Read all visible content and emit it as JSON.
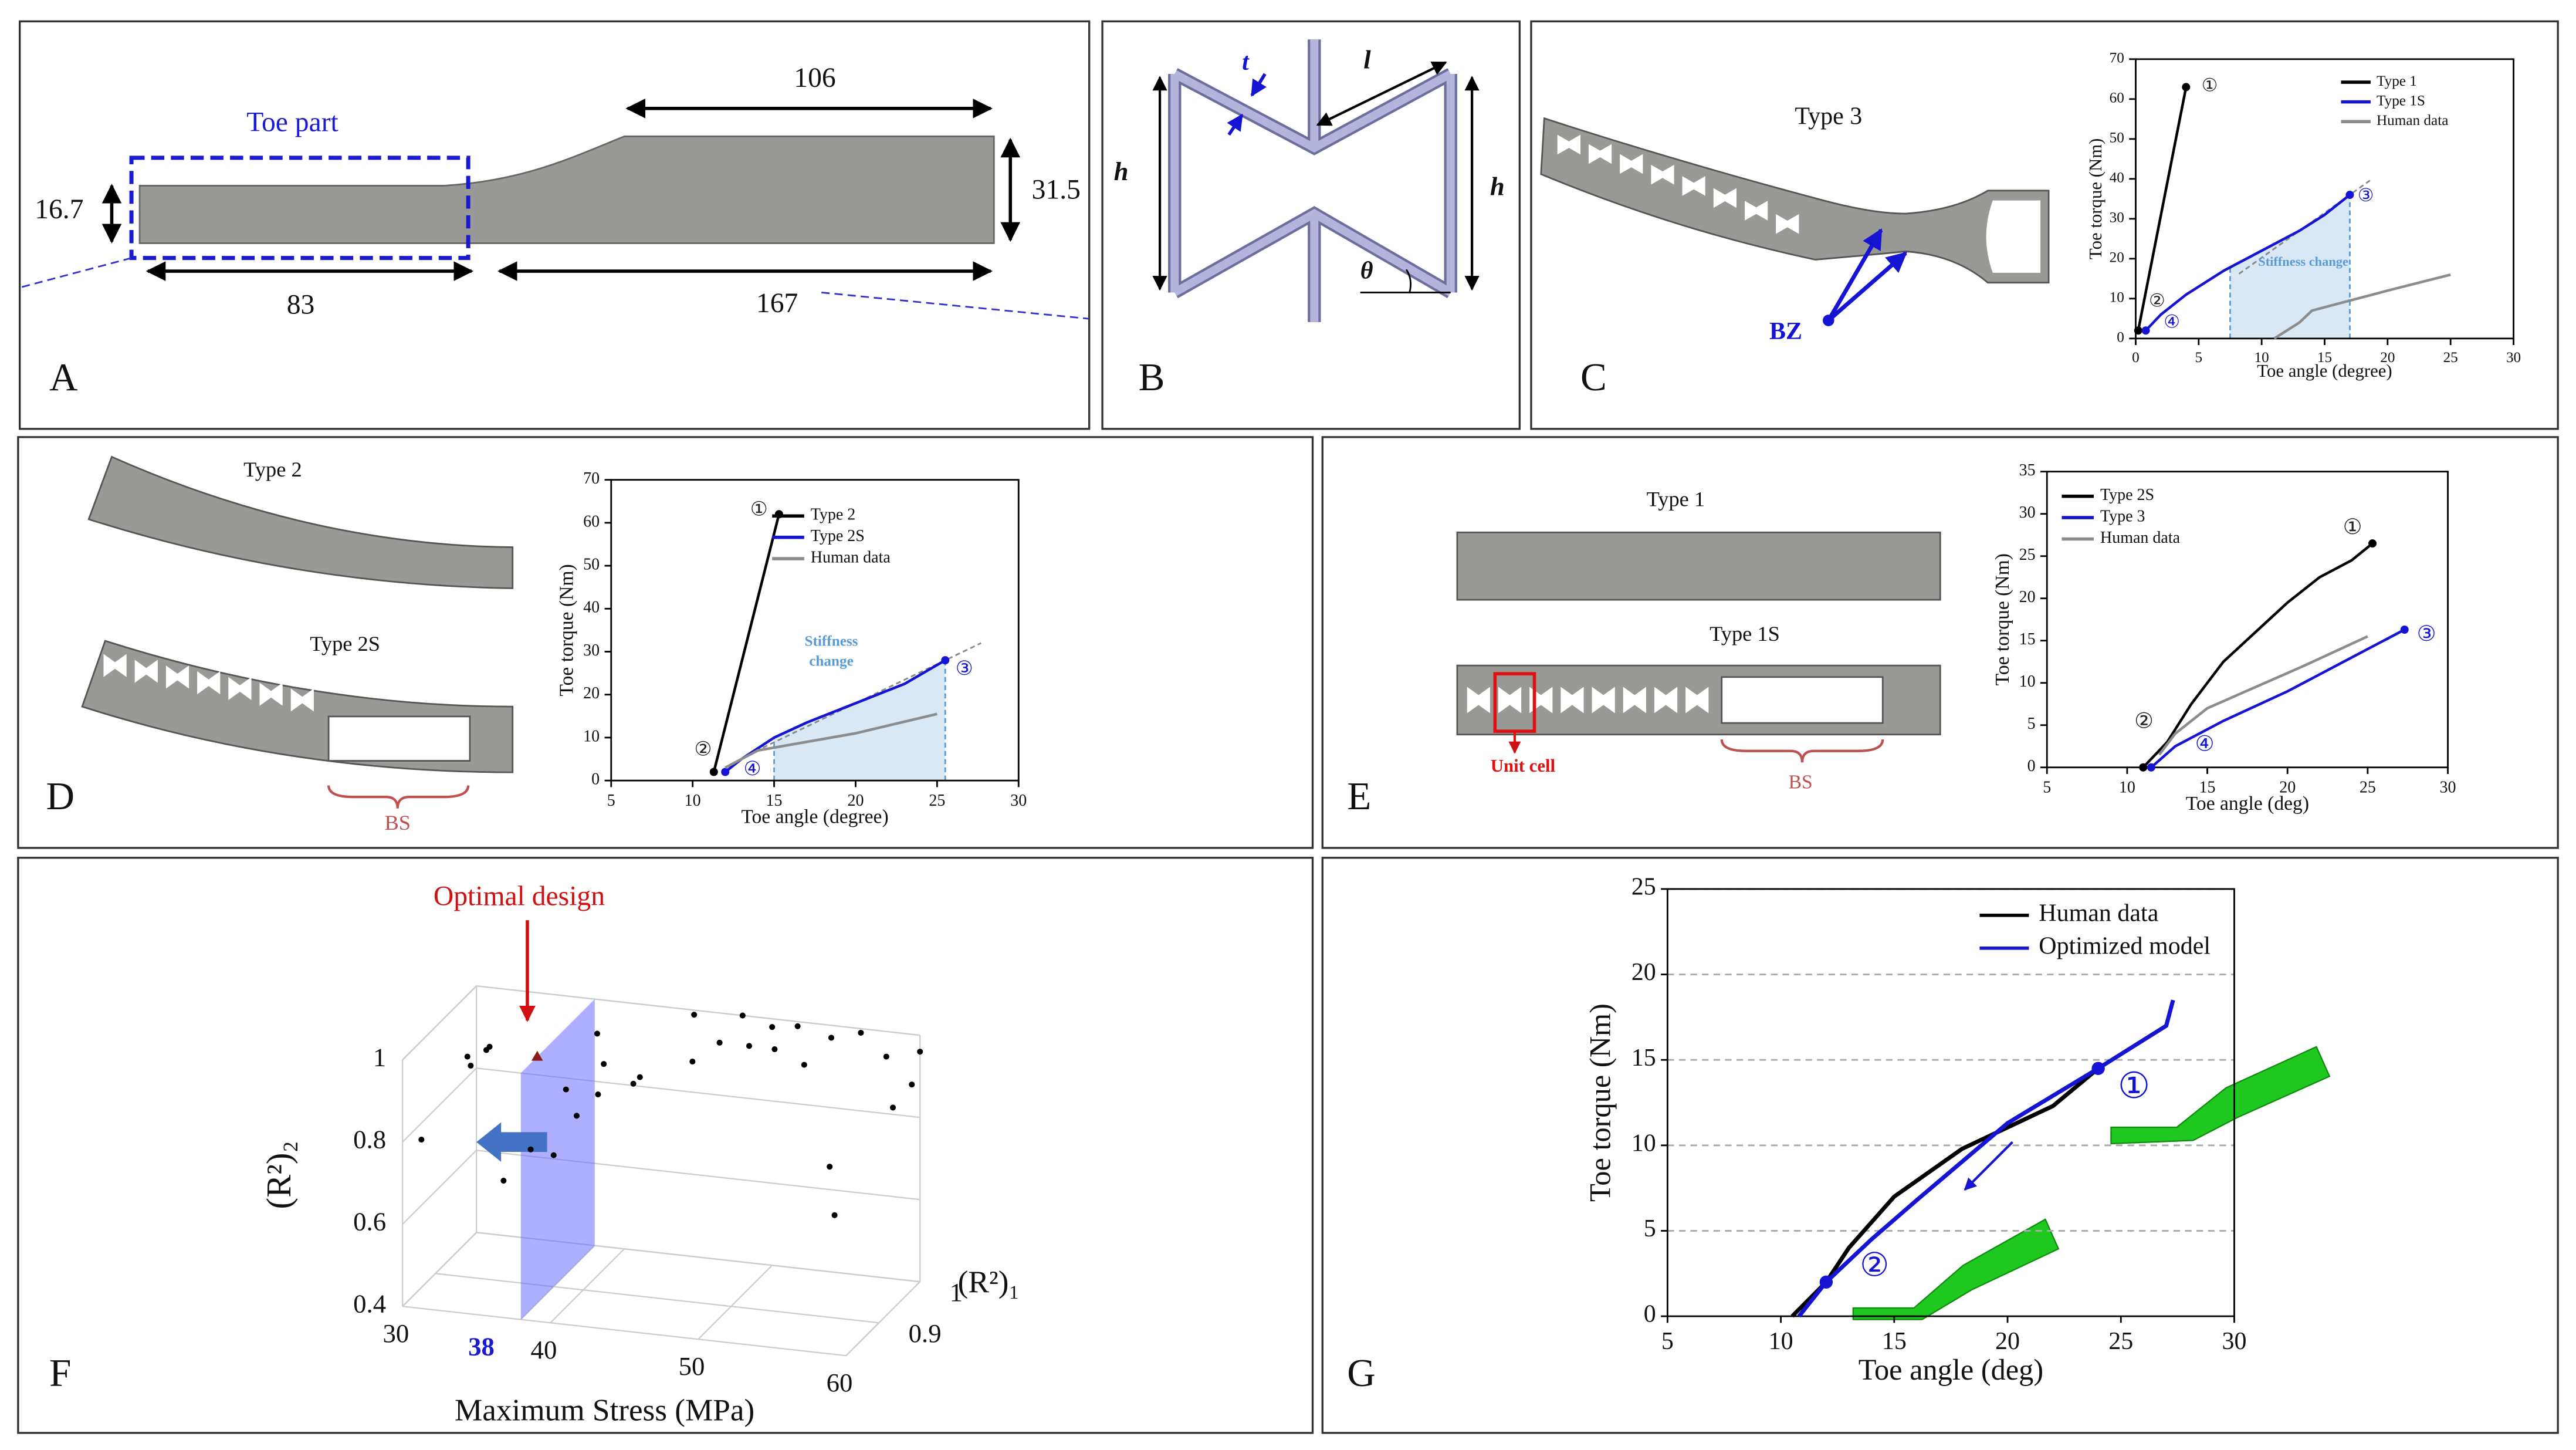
{
  "panel_labels": [
    "A",
    "B",
    "C",
    "D",
    "E",
    "F",
    "G"
  ],
  "panel_a": {
    "toe_part": "Toe part",
    "dims": [
      106,
      31.5,
      16.7,
      83,
      167
    ]
  },
  "panel_b": {
    "symbols": [
      "t",
      "l",
      "h",
      "h",
      "θ"
    ]
  },
  "panel_c": {
    "label": "Type 3",
    "bz": "BZ"
  },
  "panel_d": {
    "labels": [
      "Type 2",
      "Type 2S",
      "BS"
    ]
  },
  "panel_e": {
    "labels": [
      "Type 1",
      "Type 1S",
      "Unit cell",
      "BS"
    ]
  },
  "panel_f": {
    "annotation": "Optimal design"
  },
  "chart_data": [
    {
      "type": "line",
      "xlabel": "Toe angle (degree)",
      "ylabel": "Toe torque (Nm)",
      "xlim": [
        0,
        30
      ],
      "xticks": [
        0,
        5,
        10,
        15,
        20,
        25,
        30
      ],
      "ylim": [
        0,
        70
      ],
      "yticks": [
        0,
        10,
        20,
        30,
        40,
        50,
        60,
        70
      ],
      "series": [
        {
          "name": "Type 1",
          "color": "#000000",
          "x": [
            0.2,
            4
          ],
          "values": [
            2,
            63
          ]
        },
        {
          "name": "Type 1S",
          "color": "#1414d2",
          "x": [
            0.8,
            2,
            4,
            7,
            10,
            13,
            15,
            17
          ],
          "values": [
            2,
            6,
            11,
            17,
            22,
            27,
            31,
            36
          ]
        },
        {
          "name": "Human data",
          "color": "#8c8c8c",
          "x": [
            11,
            13,
            14,
            17,
            20,
            25
          ],
          "values": [
            0,
            4,
            7,
            9.5,
            12,
            16
          ]
        }
      ],
      "annotations": [
        "①",
        "②",
        "③",
        "④",
        "Stiffness change"
      ],
      "shade": [
        7.5,
        17
      ],
      "end_dots": true,
      "grid": false
    },
    {
      "type": "line",
      "xlabel": "Toe angle (degree)",
      "ylabel": "Toe torque (Nm)",
      "xlim": [
        5,
        30
      ],
      "xticks": [
        5,
        10,
        15,
        20,
        25,
        30
      ],
      "ylim": [
        0,
        70
      ],
      "yticks": [
        0,
        10,
        20,
        30,
        40,
        50,
        60,
        70
      ],
      "series": [
        {
          "name": "Type 2",
          "color": "#000000",
          "x": [
            11.3,
            15.3
          ],
          "values": [
            2,
            62
          ]
        },
        {
          "name": "Type 2S",
          "color": "#1414d2",
          "x": [
            12,
            13,
            15,
            17,
            20,
            23,
            25.5
          ],
          "values": [
            2,
            5,
            10,
            13.5,
            18,
            22.5,
            28
          ]
        },
        {
          "name": "Human data",
          "color": "#8c8c8c",
          "x": [
            12,
            14,
            17,
            20,
            25
          ],
          "values": [
            3,
            7,
            9,
            11,
            15.5
          ]
        }
      ],
      "annotations": [
        "①",
        "②",
        "③",
        "④",
        "Stiffness",
        "change"
      ],
      "shade": [
        15,
        25.5
      ],
      "end_dots": true,
      "grid": false
    },
    {
      "type": "line",
      "xlabel": "Toe angle (deg)",
      "ylabel": "Toe torque (Nm)",
      "xlim": [
        5,
        30
      ],
      "xticks": [
        5,
        10,
        15,
        20,
        25,
        30
      ],
      "ylim": [
        0,
        35
      ],
      "yticks": [
        0,
        5,
        10,
        15,
        20,
        25,
        30,
        35
      ],
      "series": [
        {
          "name": "Type 2S",
          "color": "#000000",
          "x": [
            11,
            12.5,
            14,
            16,
            18,
            20,
            22,
            24,
            25.3
          ],
          "values": [
            0,
            3,
            7.5,
            12.5,
            16,
            19.5,
            22.5,
            24.5,
            26.5
          ]
        },
        {
          "name": "Type 3",
          "color": "#1414d2",
          "x": [
            11.5,
            13,
            16,
            20,
            24,
            27.3
          ],
          "values": [
            0,
            2.5,
            5.5,
            9,
            13,
            16.3
          ]
        },
        {
          "name": "Human data",
          "color": "#8c8c8c",
          "x": [
            12,
            13,
            15,
            18,
            21,
            25
          ],
          "values": [
            1.5,
            4,
            7,
            9.5,
            12,
            15.5
          ]
        }
      ],
      "annotations": [
        "①",
        "②",
        "③",
        "④"
      ],
      "end_dots": true,
      "grid": false
    },
    {
      "type": "scatter3d",
      "xlabel": "Maximum Stress (MPa)",
      "ylabel": "(R²)₁",
      "zlabel": "(R²)₂",
      "xlim": [
        30,
        60
      ],
      "xticks": [
        30,
        38,
        40,
        50,
        60
      ],
      "ylim": [
        0.82,
        1
      ],
      "yticks": [
        0.9,
        1
      ],
      "zlim": [
        0.4,
        1
      ],
      "zticks": [
        0.4,
        0.6,
        0.8,
        1
      ],
      "plane_x": 38,
      "color": "#000000",
      "plane_color": "#6e6eff",
      "x": [
        33,
        34,
        33.5,
        34.5,
        31,
        39,
        40,
        38,
        41,
        39,
        37,
        42,
        38,
        43,
        36,
        48,
        50,
        52,
        54,
        56,
        47,
        53,
        58,
        60,
        59,
        55,
        57,
        45,
        49,
        51,
        46,
        60
      ],
      "y": [
        0.87,
        0.88,
        0.86,
        0.87,
        0.83,
        0.97,
        0.95,
        0.93,
        0.9,
        0.92,
        0.88,
        0.95,
        0.9,
        0.93,
        0.85,
        1,
        1,
        0.99,
        1,
        1,
        0.98,
        0.97,
        0.99,
        0.98,
        0.97,
        0.96,
        0.9,
        0.99,
        0.98,
        0.97,
        0.95,
        1
      ],
      "values": [
        0.97,
        0.98,
        0.96,
        1,
        0.8,
        0.95,
        0.9,
        0.85,
        0.88,
        0.8,
        0.75,
        0.86,
        0.72,
        0.9,
        0.7,
        1,
        0.98,
        1,
        0.97,
        0.99,
        0.95,
        0.93,
        0.95,
        0.9,
        0.85,
        0.7,
        0.65,
        1,
        0.95,
        0.96,
        0.93,
        0.96
      ],
      "optimal_point": [
        38,
        0.86,
        1
      ]
    },
    {
      "type": "line",
      "xlabel": "Toe angle (deg)",
      "ylabel": "Toe torque (Nm)",
      "xlim": [
        5,
        30
      ],
      "xticks": [
        5,
        10,
        15,
        20,
        25,
        30
      ],
      "ylim": [
        0,
        25
      ],
      "yticks": [
        0,
        5,
        10,
        15,
        20,
        25
      ],
      "series": [
        {
          "name": "Human data",
          "color": "#000000",
          "x": [
            10.5,
            12,
            13,
            15,
            18,
            22,
            24
          ],
          "values": [
            0,
            2,
            4,
            7,
            9.8,
            12.3,
            14.5
          ]
        },
        {
          "name": "Optimized model",
          "color": "#1414d2",
          "x": [
            10.8,
            12,
            14,
            16,
            20,
            24,
            27,
            27.3
          ],
          "values": [
            0,
            2,
            4.5,
            6.8,
            11.3,
            14.5,
            17,
            18.5
          ]
        }
      ],
      "annotations": [
        "①",
        "②"
      ],
      "end_dots": false,
      "grid": true
    }
  ]
}
